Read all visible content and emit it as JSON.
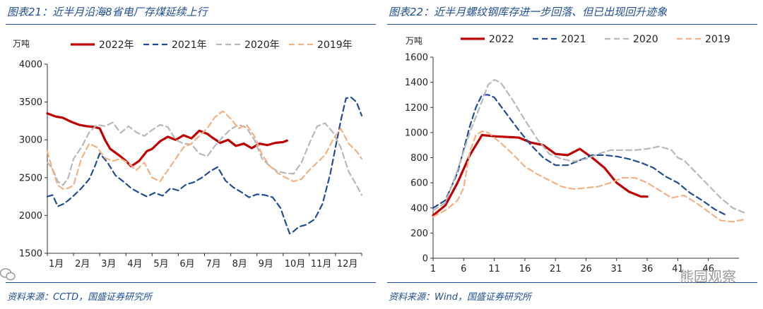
{
  "charts": [
    {
      "title": "图表21：近半月沿海8省电厂存煤延续上行",
      "source": "资料来源：CCTD，国盛证券研究所",
      "unit": "万吨",
      "chart_data": {
        "type": "line",
        "ylim": [
          1500,
          4000
        ],
        "yticks": [
          1500,
          2000,
          2500,
          3000,
          3500,
          4000
        ],
        "categories": [
          "1月",
          "2月",
          "3月",
          "4月",
          "5月",
          "6月",
          "7月",
          "8月",
          "9月",
          "10月",
          "11月",
          "12月"
        ],
        "x_domain": [
          0,
          12
        ],
        "series": [
          {
            "name": "2022年",
            "color": "#c00000",
            "dash": "",
            "width": 3.2,
            "x": [
              0,
              0.3,
              0.6,
              0.9,
              1.2,
              1.5,
              1.8,
              2.0,
              2.2,
              2.4,
              2.6,
              2.8,
              3.0,
              3.2,
              3.5,
              3.8,
              4.0,
              4.3,
              4.6,
              4.9,
              5.2,
              5.5,
              5.8,
              6.1,
              6.3,
              6.6,
              6.9,
              7.2,
              7.5,
              7.8,
              8.1,
              8.4,
              8.7,
              9.0,
              9.15
            ],
            "values": [
              3350,
              3310,
              3290,
              3240,
              3200,
              3180,
              3170,
              3150,
              3000,
              2880,
              2830,
              2780,
              2720,
              2650,
              2720,
              2850,
              2880,
              2980,
              3040,
              3000,
              3060,
              3020,
              3120,
              3080,
              3030,
              2960,
              3000,
              2920,
              2950,
              2890,
              2950,
              2930,
              2960,
              2970,
              2990
            ]
          },
          {
            "name": "2021年",
            "color": "#1f4e96",
            "dash": "8,5",
            "width": 2.2,
            "x": [
              0,
              0.2,
              0.4,
              0.6,
              0.8,
              1.0,
              1.3,
              1.6,
              1.8,
              2.0,
              2.3,
              2.6,
              2.9,
              3.2,
              3.5,
              3.8,
              4.1,
              4.4,
              4.7,
              5.0,
              5.3,
              5.6,
              5.9,
              6.2,
              6.5,
              6.8,
              7.1,
              7.4,
              7.7,
              8.0,
              8.3,
              8.6,
              8.9,
              9.1,
              9.25,
              9.4,
              9.6,
              9.9,
              10.2,
              10.5,
              10.8,
              11.0,
              11.2,
              11.4,
              11.6,
              11.8,
              12.0
            ],
            "values": [
              2250,
              2270,
              2120,
              2150,
              2200,
              2260,
              2360,
              2480,
              2640,
              2820,
              2700,
              2530,
              2450,
              2360,
              2300,
              2250,
              2300,
              2260,
              2360,
              2330,
              2410,
              2440,
              2500,
              2580,
              2640,
              2460,
              2370,
              2310,
              2240,
              2280,
              2270,
              2240,
              2100,
              1900,
              1760,
              1790,
              1850,
              1880,
              1950,
              2150,
              2550,
              2900,
              3250,
              3550,
              3560,
              3500,
              3320
            ]
          },
          {
            "name": "2020年",
            "color": "#b8b8b8",
            "dash": "8,5",
            "width": 2.2,
            "x": [
              0,
              0.2,
              0.4,
              0.6,
              0.8,
              1.0,
              1.3,
              1.6,
              1.9,
              2.2,
              2.5,
              2.8,
              3.1,
              3.4,
              3.7,
              4.0,
              4.3,
              4.6,
              4.9,
              5.2,
              5.5,
              5.8,
              6.1,
              6.4,
              6.7,
              7.0,
              7.3,
              7.6,
              7.9,
              8.2,
              8.5,
              8.8,
              9.1,
              9.4,
              9.7,
              10.0,
              10.3,
              10.6,
              10.9,
              11.2,
              11.5,
              11.8,
              12.0
            ],
            "values": [
              2700,
              2620,
              2450,
              2400,
              2500,
              2750,
              2900,
              3100,
              3200,
              3180,
              3230,
              3090,
              3180,
              3100,
              3050,
              3130,
              3200,
              3170,
              3000,
              2950,
              2940,
              2820,
              2780,
              2920,
              3040,
              3140,
              3200,
              3160,
              3000,
              2750,
              2650,
              2580,
              2560,
              2550,
              2700,
              2950,
              3180,
              3220,
              3100,
              2900,
              2580,
              2400,
              2270
            ]
          },
          {
            "name": "2019年",
            "color": "#f4b183",
            "dash": "8,5",
            "width": 2.2,
            "x": [
              0,
              0.2,
              0.4,
              0.6,
              0.8,
              1.0,
              1.3,
              1.6,
              1.9,
              2.2,
              2.5,
              2.8,
              3.1,
              3.4,
              3.7,
              4.0,
              4.3,
              4.6,
              4.9,
              5.2,
              5.5,
              5.8,
              6.1,
              6.4,
              6.7,
              7.0,
              7.3,
              7.6,
              7.9,
              8.2,
              8.5,
              8.8,
              9.1,
              9.4,
              9.7,
              10.0,
              10.3,
              10.6,
              10.9,
              11.2,
              11.5,
              11.8,
              12.0
            ],
            "values": [
              2850,
              2600,
              2400,
              2350,
              2360,
              2400,
              2750,
              2950,
              2900,
              2760,
              2720,
              2750,
              2690,
              2600,
              2700,
              2500,
              2450,
              2600,
              2750,
              2900,
              2950,
              3050,
              3150,
              3300,
              3380,
              3280,
              3150,
              3200,
              3050,
              2800,
              2650,
              2560,
              2500,
              2450,
              2480,
              2600,
              2700,
              2800,
              3000,
              3150,
              2950,
              2850,
              2750
            ]
          }
        ]
      }
    },
    {
      "title": "图表22：近半月螺纹钢库存进一步回落、但已出现回升迹象",
      "source": "资料来源：Wind，国盛证券研究所",
      "unit": "万吨",
      "chart_data": {
        "type": "line",
        "ylim": [
          0,
          1600
        ],
        "yticks": [
          0,
          200,
          400,
          600,
          800,
          1000,
          1200,
          1400,
          1600
        ],
        "xticks": [
          1,
          6,
          11,
          16,
          21,
          26,
          31,
          36,
          41,
          46
        ],
        "x_domain": [
          1,
          51
        ],
        "series": [
          {
            "name": "2022",
            "color": "#c00000",
            "dash": "",
            "width": 3.2,
            "x": [
              1,
              3,
              5,
              7,
              9,
              11,
              13,
              15,
              17,
              19,
              21,
              23,
              25,
              27,
              29,
              31,
              33,
              35,
              36
            ],
            "values": [
              340,
              420,
              600,
              820,
              980,
              970,
              965,
              960,
              920,
              900,
              830,
              820,
              870,
              800,
              720,
              600,
              530,
              490,
              490
            ]
          },
          {
            "name": "2021",
            "color": "#1f4e96",
            "dash": "8,5",
            "width": 2.2,
            "x": [
              1,
              3,
              5,
              7,
              8,
              9,
              10,
              11,
              13,
              15,
              17,
              19,
              21,
              23,
              25,
              27,
              29,
              31,
              33,
              35,
              37,
              39,
              41,
              43,
              45,
              47,
              49
            ],
            "values": [
              400,
              460,
              680,
              1050,
              1200,
              1300,
              1300,
              1280,
              1150,
              1020,
              900,
              800,
              740,
              740,
              780,
              820,
              820,
              810,
              790,
              760,
              720,
              650,
              600,
              520,
              460,
              390,
              340
            ]
          },
          {
            "name": "2020",
            "color": "#b8b8b8",
            "dash": "8,5",
            "width": 2.2,
            "x": [
              1,
              3,
              5,
              7,
              9,
              10,
              11,
              12,
              14,
              16,
              18,
              20,
              22,
              24,
              26,
              28,
              30,
              32,
              34,
              36,
              38,
              40,
              41,
              42,
              44,
              46,
              48,
              50,
              52
            ],
            "values": [
              380,
              440,
              700,
              1000,
              1250,
              1380,
              1420,
              1400,
              1260,
              1100,
              950,
              830,
              790,
              770,
              790,
              830,
              860,
              860,
              860,
              870,
              890,
              860,
              800,
              780,
              680,
              580,
              480,
              400,
              360
            ]
          },
          {
            "name": "2019",
            "color": "#f4b183",
            "dash": "8,5",
            "width": 2.2,
            "x": [
              1,
              3,
              5,
              6,
              7,
              8,
              9,
              10,
              12,
              14,
              16,
              18,
              20,
              22,
              24,
              26,
              28,
              30,
              32,
              34,
              36,
              38,
              40,
              42,
              44,
              46,
              48,
              50,
              52
            ],
            "values": [
              330,
              380,
              460,
              560,
              850,
              980,
              1010,
              1000,
              920,
              830,
              730,
              670,
              620,
              570,
              550,
              560,
              570,
              600,
              640,
              640,
              600,
              540,
              480,
              500,
              440,
              370,
              300,
              290,
              310
            ]
          }
        ]
      }
    }
  ],
  "watermark": "熊园观察"
}
